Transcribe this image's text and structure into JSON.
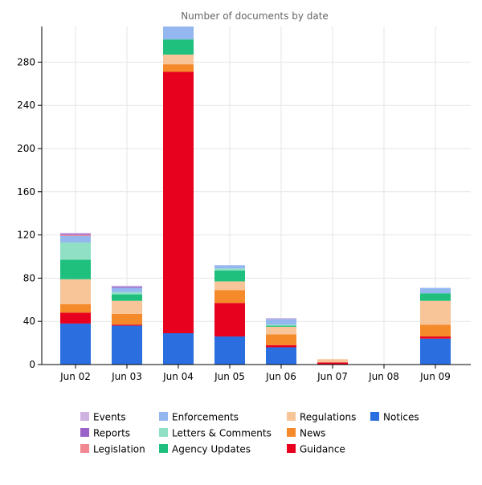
{
  "chart_data": {
    "type": "bar",
    "stacked": true,
    "title": "Number of documents by date",
    "xlabel": "",
    "ylabel": "",
    "categories": [
      "Jun 02",
      "Jun 03",
      "Jun 04",
      "Jun 05",
      "Jun 06",
      "Jun 07",
      "Jun 08",
      "Jun 09"
    ],
    "ylim": [
      0,
      313
    ],
    "yticks": [
      0,
      40,
      80,
      120,
      160,
      200,
      240,
      280
    ],
    "grid": true,
    "legend_position": "bottom",
    "series": [
      {
        "name": "Notices",
        "color": "#2b6ee0",
        "values": [
          38,
          36,
          29,
          26,
          16,
          0,
          0,
          24
        ]
      },
      {
        "name": "Guidance",
        "color": "#e8001f",
        "values": [
          10,
          1,
          242,
          31,
          2,
          2,
          0,
          2
        ]
      },
      {
        "name": "News",
        "color": "#f58a2a",
        "values": [
          8,
          10,
          7,
          12,
          10,
          0,
          0,
          11
        ]
      },
      {
        "name": "Regulations",
        "color": "#f8c599",
        "values": [
          23,
          12,
          9,
          8,
          7,
          3,
          0,
          22
        ]
      },
      {
        "name": "Agency Updates",
        "color": "#1fc07e",
        "values": [
          18,
          6,
          14,
          10,
          1,
          0,
          0,
          7
        ]
      },
      {
        "name": "Letters & Comments",
        "color": "#8fe0c5",
        "values": [
          16,
          2,
          0,
          2,
          1,
          0,
          0,
          0
        ]
      },
      {
        "name": "Enforcements",
        "color": "#95b7ef",
        "values": [
          6,
          4,
          12,
          3,
          5,
          0,
          0,
          5
        ]
      },
      {
        "name": "Legislation",
        "color": "#f08791",
        "values": [
          1,
          0,
          0,
          0,
          0,
          0,
          0,
          0
        ]
      },
      {
        "name": "Reports",
        "color": "#9a62c9",
        "values": [
          1,
          1,
          0,
          0,
          0,
          0,
          0,
          0
        ]
      },
      {
        "name": "Events",
        "color": "#cdb2e2",
        "values": [
          1,
          1,
          0,
          0,
          1,
          0,
          0,
          0
        ]
      }
    ],
    "legend_order": [
      "Events",
      "Reports",
      "Legislation",
      "Enforcements",
      "Letters & Comments",
      "Agency Updates",
      "Regulations",
      "News",
      "Guidance",
      "Notices"
    ]
  }
}
